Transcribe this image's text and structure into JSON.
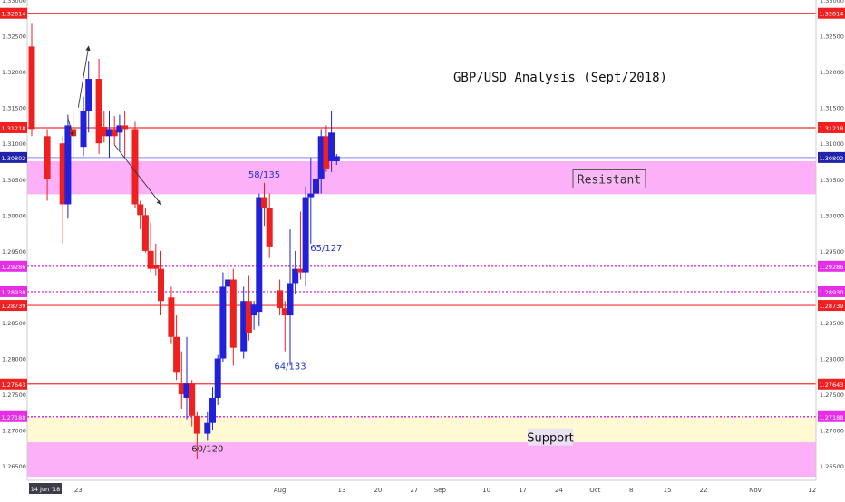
{
  "chart_data": {
    "type": "candlestick",
    "title": "GBP/USD Analysis (Sept/2018)",
    "ylim": [
      1.263,
      1.33
    ],
    "y_ticks": [
      "1.33000",
      "1.32500",
      "1.32000",
      "1.31500",
      "1.31000",
      "1.30500",
      "1.30000",
      "1.29500",
      "1.28500",
      "1.28000",
      "1.27500",
      "1.27000",
      "1.26500"
    ],
    "y_tick_values": [
      1.33,
      1.325,
      1.32,
      1.315,
      1.31,
      1.305,
      1.3,
      1.295,
      1.285,
      1.28,
      1.275,
      1.27,
      1.265
    ],
    "x_start_date": "14 Jun '18",
    "x_ticks": [
      {
        "label": "23",
        "day": 9
      },
      {
        "label": "Aug",
        "day": 48
      },
      {
        "label": "13",
        "day": 60
      },
      {
        "label": "20",
        "day": 67
      },
      {
        "label": "27",
        "day": 74
      },
      {
        "label": "Sep",
        "day": 79
      },
      {
        "label": "10",
        "day": 88
      },
      {
        "label": "17",
        "day": 95
      },
      {
        "label": "24",
        "day": 102
      },
      {
        "label": "Oct",
        "day": 109
      },
      {
        "label": "8",
        "day": 116
      },
      {
        "label": "15",
        "day": 123
      },
      {
        "label": "22",
        "day": 130
      },
      {
        "label": "Nov",
        "day": 140
      },
      {
        "label": "12",
        "day": 151
      }
    ],
    "colors": {
      "up": "#2121d9",
      "down": "#ef2020",
      "price_line": "#9999ff"
    },
    "candles": [
      {
        "day": 0,
        "o": 1.3235,
        "h": 1.3268,
        "l": 1.311,
        "c": 1.312
      },
      {
        "day": 3,
        "o": 1.311,
        "h": 1.312,
        "l": 1.302,
        "c": 1.305
      },
      {
        "day": 6,
        "o": 1.31,
        "h": 1.311,
        "l": 1.296,
        "c": 1.3015
      },
      {
        "day": 7,
        "o": 1.3015,
        "h": 1.314,
        "l": 1.2995,
        "c": 1.3125
      },
      {
        "day": 8,
        "o": 1.312,
        "h": 1.3145,
        "l": 1.308,
        "c": 1.311
      },
      {
        "day": 10,
        "o": 1.3095,
        "h": 1.3165,
        "l": 1.3082,
        "c": 1.3145
      },
      {
        "day": 11,
        "o": 1.3145,
        "h": 1.3215,
        "l": 1.3115,
        "c": 1.319
      },
      {
        "day": 13,
        "o": 1.319,
        "h": 1.3218,
        "l": 1.3085,
        "c": 1.31
      },
      {
        "day": 14,
        "o": 1.3123,
        "h": 1.3145,
        "l": 1.3101,
        "c": 1.311
      },
      {
        "day": 15,
        "o": 1.311,
        "h": 1.3145,
        "l": 1.308,
        "c": 1.312
      },
      {
        "day": 16,
        "o": 1.312,
        "h": 1.3138,
        "l": 1.3098,
        "c": 1.311
      },
      {
        "day": 17,
        "o": 1.3115,
        "h": 1.314,
        "l": 1.309,
        "c": 1.3125
      },
      {
        "day": 18,
        "o": 1.3125,
        "h": 1.3145,
        "l": 1.308,
        "c": 1.312
      },
      {
        "day": 20,
        "o": 1.312,
        "h": 1.313,
        "l": 1.301,
        "c": 1.3015
      },
      {
        "day": 21,
        "o": 1.3015,
        "h": 1.302,
        "l": 1.298,
        "c": 1.3
      },
      {
        "day": 22,
        "o": 1.3,
        "h": 1.301,
        "l": 1.2948,
        "c": 1.295
      },
      {
        "day": 23,
        "o": 1.295,
        "h": 1.299,
        "l": 1.292,
        "c": 1.2925
      },
      {
        "day": 24,
        "o": 1.293,
        "h": 1.296,
        "l": 1.2915,
        "c": 1.2925
      },
      {
        "day": 25,
        "o": 1.2925,
        "h": 1.295,
        "l": 1.286,
        "c": 1.288
      },
      {
        "day": 27,
        "o": 1.2885,
        "h": 1.29,
        "l": 1.282,
        "c": 1.283
      },
      {
        "day": 28,
        "o": 1.283,
        "h": 1.286,
        "l": 1.277,
        "c": 1.278
      },
      {
        "day": 29,
        "o": 1.2765,
        "h": 1.281,
        "l": 1.273,
        "c": 1.275
      },
      {
        "day": 30,
        "o": 1.2745,
        "h": 1.283,
        "l": 1.2715,
        "c": 1.2765
      },
      {
        "day": 31,
        "o": 1.2765,
        "h": 1.277,
        "l": 1.2705,
        "c": 1.272
      },
      {
        "day": 32,
        "o": 1.272,
        "h": 1.2725,
        "l": 1.266,
        "c": 1.2695
      },
      {
        "day": 34,
        "o": 1.2695,
        "h": 1.2725,
        "l": 1.2685,
        "c": 1.271
      },
      {
        "day": 35,
        "o": 1.271,
        "h": 1.276,
        "l": 1.27,
        "c": 1.2745
      },
      {
        "day": 36,
        "o": 1.2745,
        "h": 1.2805,
        "l": 1.2735,
        "c": 1.28
      },
      {
        "day": 37,
        "o": 1.28,
        "h": 1.292,
        "l": 1.2795,
        "c": 1.29
      },
      {
        "day": 38,
        "o": 1.29,
        "h": 1.2935,
        "l": 1.288,
        "c": 1.291
      },
      {
        "day": 39,
        "o": 1.291,
        "h": 1.2925,
        "l": 1.279,
        "c": 1.2815
      },
      {
        "day": 41,
        "o": 1.281,
        "h": 1.29,
        "l": 1.28,
        "c": 1.288
      },
      {
        "day": 42,
        "o": 1.288,
        "h": 1.2915,
        "l": 1.2825,
        "c": 1.2835
      },
      {
        "day": 43,
        "o": 1.286,
        "h": 1.288,
        "l": 1.284,
        "c": 1.2875
      },
      {
        "day": 44,
        "o": 1.2865,
        "h": 1.303,
        "l": 1.2845,
        "c": 1.3025
      },
      {
        "day": 45,
        "o": 1.3025,
        "h": 1.3045,
        "l": 1.2985,
        "c": 1.301
      },
      {
        "day": 46,
        "o": 1.301,
        "h": 1.303,
        "l": 1.294,
        "c": 1.2955
      },
      {
        "day": 48,
        "o": 1.2895,
        "h": 1.291,
        "l": 1.286,
        "c": 1.287
      },
      {
        "day": 49,
        "o": 1.287,
        "h": 1.288,
        "l": 1.281,
        "c": 1.286
      },
      {
        "day": 50,
        "o": 1.286,
        "h": 1.298,
        "l": 1.279,
        "c": 1.2905
      },
      {
        "day": 51,
        "o": 1.2905,
        "h": 1.295,
        "l": 1.289,
        "c": 1.2925
      },
      {
        "day": 52,
        "o": 1.2925,
        "h": 1.3005,
        "l": 1.291,
        "c": 1.292
      },
      {
        "day": 53,
        "o": 1.292,
        "h": 1.304,
        "l": 1.29,
        "c": 1.3025
      },
      {
        "day": 54,
        "o": 1.3025,
        "h": 1.308,
        "l": 1.296,
        "c": 1.303
      },
      {
        "day": 55,
        "o": 1.303,
        "h": 1.3085,
        "l": 1.299,
        "c": 1.305
      },
      {
        "day": 56,
        "o": 1.305,
        "h": 1.312,
        "l": 1.303,
        "c": 1.311
      },
      {
        "day": 57,
        "o": 1.311,
        "h": 1.3125,
        "l": 1.306,
        "c": 1.3065
      },
      {
        "day": 58,
        "o": 1.3075,
        "h": 1.3145,
        "l": 1.306,
        "c": 1.3115
      },
      {
        "day": 59,
        "o": 1.3075,
        "h": 1.3085,
        "l": 1.307,
        "c": 1.3082
      }
    ],
    "horizontal_levels": [
      {
        "value": 1.32814,
        "label": "1.32814",
        "style": "solid",
        "color": "#f23030"
      },
      {
        "value": 1.31218,
        "label": "1.31218",
        "style": "solid",
        "color": "#f23030"
      },
      {
        "value": 1.30802,
        "label": "1.30802",
        "style": "solid",
        "color": "#9999ff"
      },
      {
        "value": 1.29286,
        "label": "1.29286",
        "style": "dotted",
        "color": "#e030e0"
      },
      {
        "value": 1.2893,
        "label": "1.28930",
        "style": "dotted",
        "color": "#e030e0"
      },
      {
        "value": 1.28739,
        "label": "1.28739",
        "style": "solid",
        "color": "#f23030"
      },
      {
        "value": 1.27643,
        "label": "1.27643",
        "style": "solid",
        "color": "#f23030"
      },
      {
        "value": 1.27188,
        "label": "1.27188",
        "style": "dotted",
        "color": "#e030e0"
      }
    ],
    "zones": [
      {
        "name": "resistance",
        "y_low": 1.3029,
        "y_high": 1.3075,
        "color": "#fbb0f8",
        "label": "Resistant"
      },
      {
        "name": "support-yellow",
        "y_low": 1.2683,
        "y_high": 1.2718,
        "color": "#fff9d4",
        "label": ""
      },
      {
        "name": "support-pink",
        "y_low": 1.2635,
        "y_high": 1.2683,
        "color": "#fbb0f8",
        "label": "Support"
      }
    ],
    "annotations": [
      {
        "text": "58/135",
        "day": 45,
        "y": 1.3052
      },
      {
        "text": "64/133",
        "day": 50,
        "y": 1.2785
      },
      {
        "text": "65/127",
        "day": 57,
        "y": 1.295
      },
      {
        "text": "60/120",
        "day": 34,
        "y": 1.267
      }
    ],
    "arrows": [
      {
        "from": {
          "day": 7,
          "y": 1.3135
        },
        "to": {
          "day": 8,
          "y": 1.311
        }
      },
      {
        "from": {
          "day": 9,
          "y": 1.315
        },
        "to": {
          "day": 11,
          "y": 1.3235
        }
      },
      {
        "from": {
          "day": 16,
          "y": 1.3098
        },
        "to": {
          "day": 25,
          "y": 1.3015
        }
      }
    ]
  }
}
